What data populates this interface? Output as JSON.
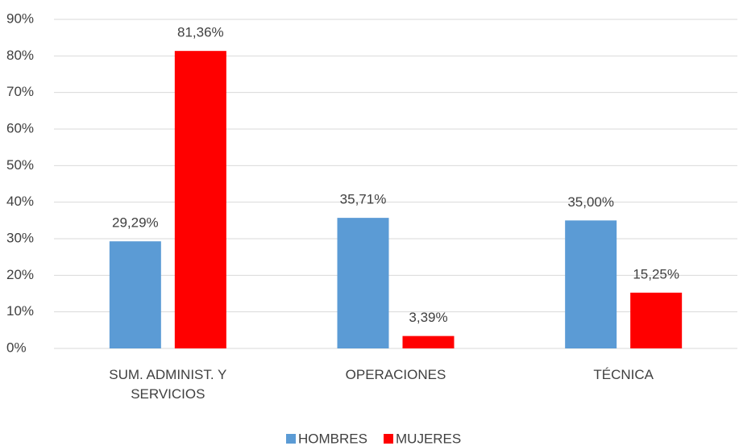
{
  "chart_data": {
    "type": "bar",
    "categories": [
      "SUM. ADMINIST. Y SERVICIOS",
      "OPERACIONES",
      "TÉCNICA"
    ],
    "series": [
      {
        "name": "HOMBRES",
        "color": "#5b9bd5",
        "values": [
          29.29,
          35.71,
          35.0
        ],
        "value_labels": [
          "29,29%",
          "35,71%",
          "35,00%"
        ]
      },
      {
        "name": "MUJERES",
        "color": "#ff0000",
        "values": [
          81.36,
          3.39,
          15.25
        ],
        "value_labels": [
          "81,36%",
          "3,39%",
          "15,25%"
        ]
      }
    ],
    "ylim": [
      0,
      90
    ],
    "yticks": [
      {
        "value": 0,
        "label": "0%"
      },
      {
        "value": 10,
        "label": "10%"
      },
      {
        "value": 20,
        "label": "20%"
      },
      {
        "value": 30,
        "label": "30%"
      },
      {
        "value": 40,
        "label": "40%"
      },
      {
        "value": 50,
        "label": "50%"
      },
      {
        "value": 60,
        "label": "60%"
      },
      {
        "value": 70,
        "label": "70%"
      },
      {
        "value": 80,
        "label": "80%"
      },
      {
        "value": 90,
        "label": "90%"
      }
    ],
    "grid": true,
    "legend": "bottom"
  }
}
